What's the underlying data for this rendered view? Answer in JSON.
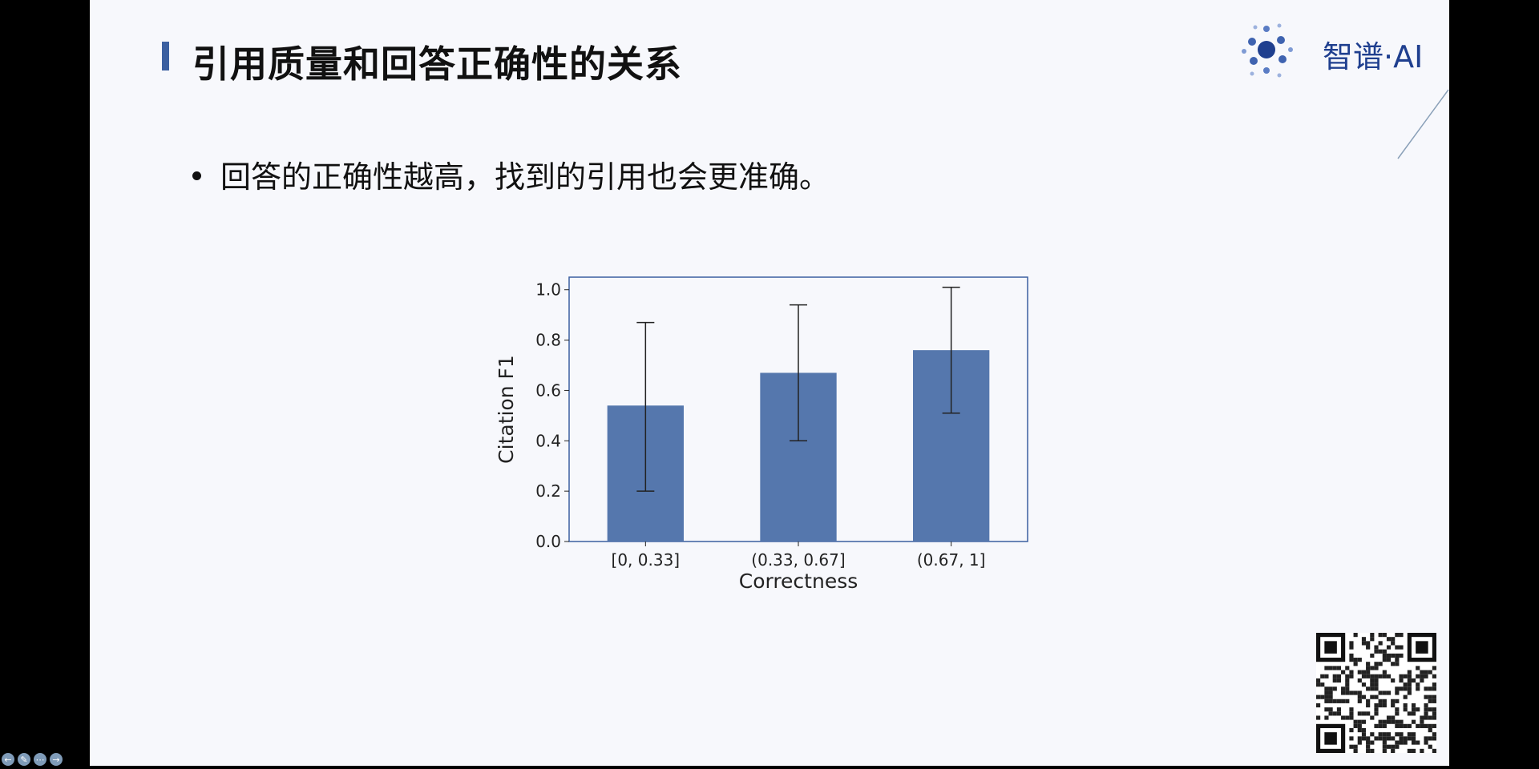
{
  "slide": {
    "title": "引用质量和回答正确性的关系",
    "bullet": "回答的正确性越高，找到的引用也会更准确。"
  },
  "logo": {
    "text": "智谱·AI"
  },
  "nav": {
    "prev_icon": "arrow-left-icon",
    "pen_icon": "pen-icon",
    "menu_icon": "more-icon",
    "next_icon": "arrow-right-icon"
  },
  "chart_data": {
    "type": "bar",
    "categories": [
      "[0, 0.33]",
      "(0.33, 0.67]",
      "(0.67, 1]"
    ],
    "values": [
      0.54,
      0.67,
      0.76
    ],
    "error_low": [
      0.2,
      0.4,
      0.51
    ],
    "error_high": [
      0.87,
      0.94,
      1.01
    ],
    "xlabel": "Correctness",
    "ylabel": "Citation F1",
    "ylim": [
      0,
      1.05
    ],
    "yticks": [
      "0.0",
      "0.2",
      "0.4",
      "0.6",
      "0.8",
      "1.0"
    ],
    "bar_color": "#5577ad",
    "grid": false
  }
}
